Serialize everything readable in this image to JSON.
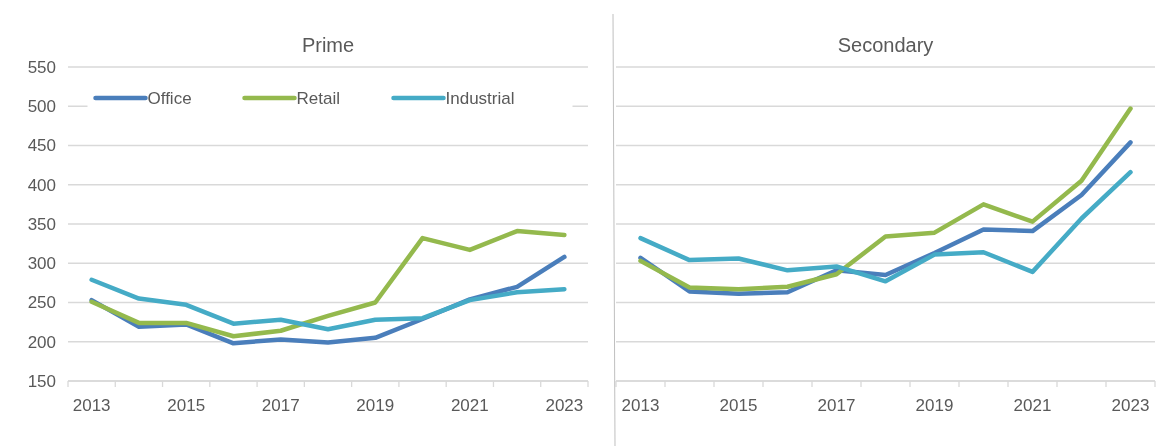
{
  "chart_data": [
    {
      "type": "line",
      "title": "Prime",
      "categories": [
        "2013",
        null,
        "2015",
        null,
        "2017",
        null,
        "2019",
        null,
        "2021",
        null,
        "2023"
      ],
      "ylim": [
        150,
        550
      ],
      "yticks": [
        150,
        200,
        250,
        300,
        350,
        400,
        450,
        500,
        550
      ],
      "grid": "y",
      "legend": "top",
      "line_style": "solid",
      "marker": "none",
      "series": [
        {
          "name": "Office",
          "color": "#4a7ebb",
          "values": [
            253,
            219,
            222,
            198,
            203,
            199,
            205,
            229,
            254,
            270,
            308
          ]
        },
        {
          "name": "Retail",
          "color": "#94b94d",
          "values": [
            251,
            224,
            224,
            207,
            214,
            233,
            250,
            332,
            317,
            341,
            336
          ]
        },
        {
          "name": "Industrial",
          "color": "#45abc6",
          "values": [
            279,
            255,
            247,
            223,
            228,
            216,
            228,
            230,
            253,
            263,
            267
          ]
        }
      ]
    },
    {
      "type": "line",
      "title": "Secondary",
      "categories": [
        "2013",
        null,
        "2015",
        null,
        "2017",
        null,
        "2019",
        null,
        "2021",
        null,
        "2023"
      ],
      "ylim": [
        150,
        550
      ],
      "yticks": [
        150,
        200,
        250,
        300,
        350,
        400,
        450,
        500,
        550
      ],
      "grid": "y",
      "legend": false,
      "tick_labels": "x",
      "line_style": "solid",
      "marker": "none",
      "series": [
        {
          "color": "#4a7ebb",
          "values": [
            307,
            264,
            261,
            263,
            291,
            285,
            313,
            343,
            341,
            387,
            454
          ]
        },
        {
          "color": "#94b94d",
          "values": [
            303,
            269,
            267,
            270,
            286,
            334,
            339,
            375,
            353,
            405,
            497
          ]
        },
        {
          "color": "#45abc6",
          "values": [
            332,
            304,
            306,
            291,
            296,
            277,
            311,
            314,
            289,
            357,
            416
          ]
        }
      ]
    }
  ]
}
